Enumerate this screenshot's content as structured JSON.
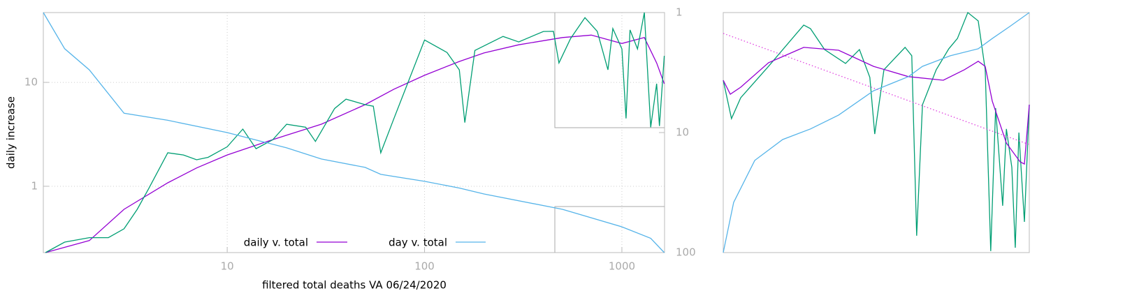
{
  "chart_data": [
    {
      "type": "line",
      "ylabel": "daily increase",
      "xlabel": "filtered total deaths VA 06/24/2020",
      "xscale": "log",
      "yscale": "log",
      "y2scale": "log",
      "y2_reversed": true,
      "grid": true,
      "xlim": [
        1.17,
        1645
      ],
      "ylim": [
        0.23,
        47
      ],
      "y2lim": [
        1,
        100
      ],
      "xticks": [
        10,
        100,
        1000
      ],
      "yticks": [
        1,
        10
      ],
      "y2ticks": [
        1,
        10,
        100
      ],
      "series": [
        {
          "name": "daily v. total",
          "color": "#9400d3",
          "x": [
            1.2,
            2,
            3,
            5,
            7,
            10,
            15,
            20,
            30,
            50,
            70,
            100,
            150,
            200,
            300,
            500,
            700,
            1000,
            1300,
            1500,
            1640
          ],
          "values": [
            0.23,
            0.3,
            0.6,
            1.08,
            1.5,
            2.0,
            2.6,
            3.1,
            3.96,
            6.1,
            8.6,
            11.7,
            15.9,
            19.2,
            23,
            27,
            28.5,
            23.7,
            27,
            15.4,
            9.7
          ]
        },
        {
          "color": "#009e73",
          "x": [
            1.2,
            1.5,
            2,
            2.5,
            3,
            3.5,
            4,
            5,
            6,
            7,
            8,
            10,
            12,
            14,
            17,
            20,
            25,
            28,
            35,
            40,
            50,
            55,
            60,
            70,
            100,
            130,
            150,
            160,
            180,
            250,
            300,
            400,
            450,
            480,
            550,
            650,
            750,
            850,
            900,
            1000,
            1050,
            1100,
            1200,
            1300,
            1400,
            1500,
            1550,
            1640
          ],
          "values": [
            0.23,
            0.29,
            0.32,
            0.32,
            0.39,
            0.6,
            0.95,
            2.1,
            2.0,
            1.8,
            1.9,
            2.4,
            3.55,
            2.3,
            2.8,
            3.95,
            3.7,
            2.7,
            5.6,
            6.9,
            6.1,
            5.9,
            2.1,
            4.5,
            25.6,
            19.4,
            13.2,
            4.1,
            20.3,
            27.7,
            24.5,
            30.9,
            31,
            15.4,
            26.5,
            42,
            31,
            13.2,
            33,
            21,
            4.5,
            32,
            21,
            47,
            3.7,
            9.7,
            3.8,
            18
          ]
        },
        {
          "name": "day v. total",
          "color": "#56b4e9",
          "axis": "y2",
          "x": [
            1.17,
            1.5,
            2,
            3,
            5,
            10,
            20,
            30,
            50,
            60,
            100,
            150,
            200,
            500,
            1000,
            1400,
            1640
          ],
          "values": [
            1,
            2.0,
            3.0,
            6.9,
            7.9,
            10,
            13.4,
            16.6,
            19.5,
            22.3,
            25.5,
            29,
            32.5,
            43.6,
            61,
            76,
            100
          ]
        }
      ]
    },
    {
      "type": "line",
      "xlim": [
        0,
        100
      ],
      "ylim": [
        0,
        100
      ],
      "series": [
        {
          "color": "#009e73",
          "x": [
            0,
            2.7,
            5.7,
            14.8,
            26.3,
            28.5,
            33.1,
            39.95,
            44.5,
            47.9,
            49.5,
            52.5,
            59.4,
            61.6,
            63.2,
            65.1,
            69.6,
            73.7,
            76.5,
            79.9,
            83.3,
            85.6,
            87.4,
            89.0,
            91.3,
            92.5,
            94.3,
            95.4,
            96.6,
            98.4,
            100
          ],
          "values": [
            71.8,
            55.8,
            64.5,
            77.6,
            94.8,
            93.3,
            84.6,
            78.8,
            84.6,
            73.0,
            49.4,
            76.2,
            85.5,
            82.0,
            7.0,
            61.6,
            76.2,
            84.9,
            89.2,
            100,
            96.5,
            76.2,
            0.6,
            60.2,
            19.5,
            51.5,
            35.5,
            2.0,
            50.0,
            12.8,
            61.6
          ]
        },
        {
          "color": "#9400d3",
          "x": [
            0,
            2.3,
            5.7,
            14.8,
            26.3,
            37.7,
            49.1,
            60.5,
            71.9,
            78.8,
            83.3,
            85.6,
            87.9,
            92.5,
            97.0,
            98.4,
            100
          ],
          "values": [
            71.8,
            66.0,
            68.9,
            79.1,
            85.5,
            84.3,
            77.6,
            73.3,
            71.8,
            76.2,
            79.7,
            77.6,
            63.1,
            45.6,
            37.8,
            36.9,
            61.6
          ]
        },
        {
          "color": "#56b4e9",
          "x": [
            0,
            3.4,
            10.3,
            19.4,
            28.5,
            37.7,
            49.1,
            60.5,
            65.1,
            74.2,
            83.3,
            87.9,
            93.6,
            100
          ],
          "values": [
            0,
            20.9,
            38.4,
            47.1,
            51.5,
            57.3,
            67.4,
            73.3,
            77.6,
            82.0,
            84.9,
            89.2,
            94.2,
            100
          ]
        },
        {
          "color": "#e040e0",
          "dash": true,
          "x": [
            0,
            100
          ],
          "values": [
            91.3,
            45
          ]
        }
      ]
    }
  ]
}
